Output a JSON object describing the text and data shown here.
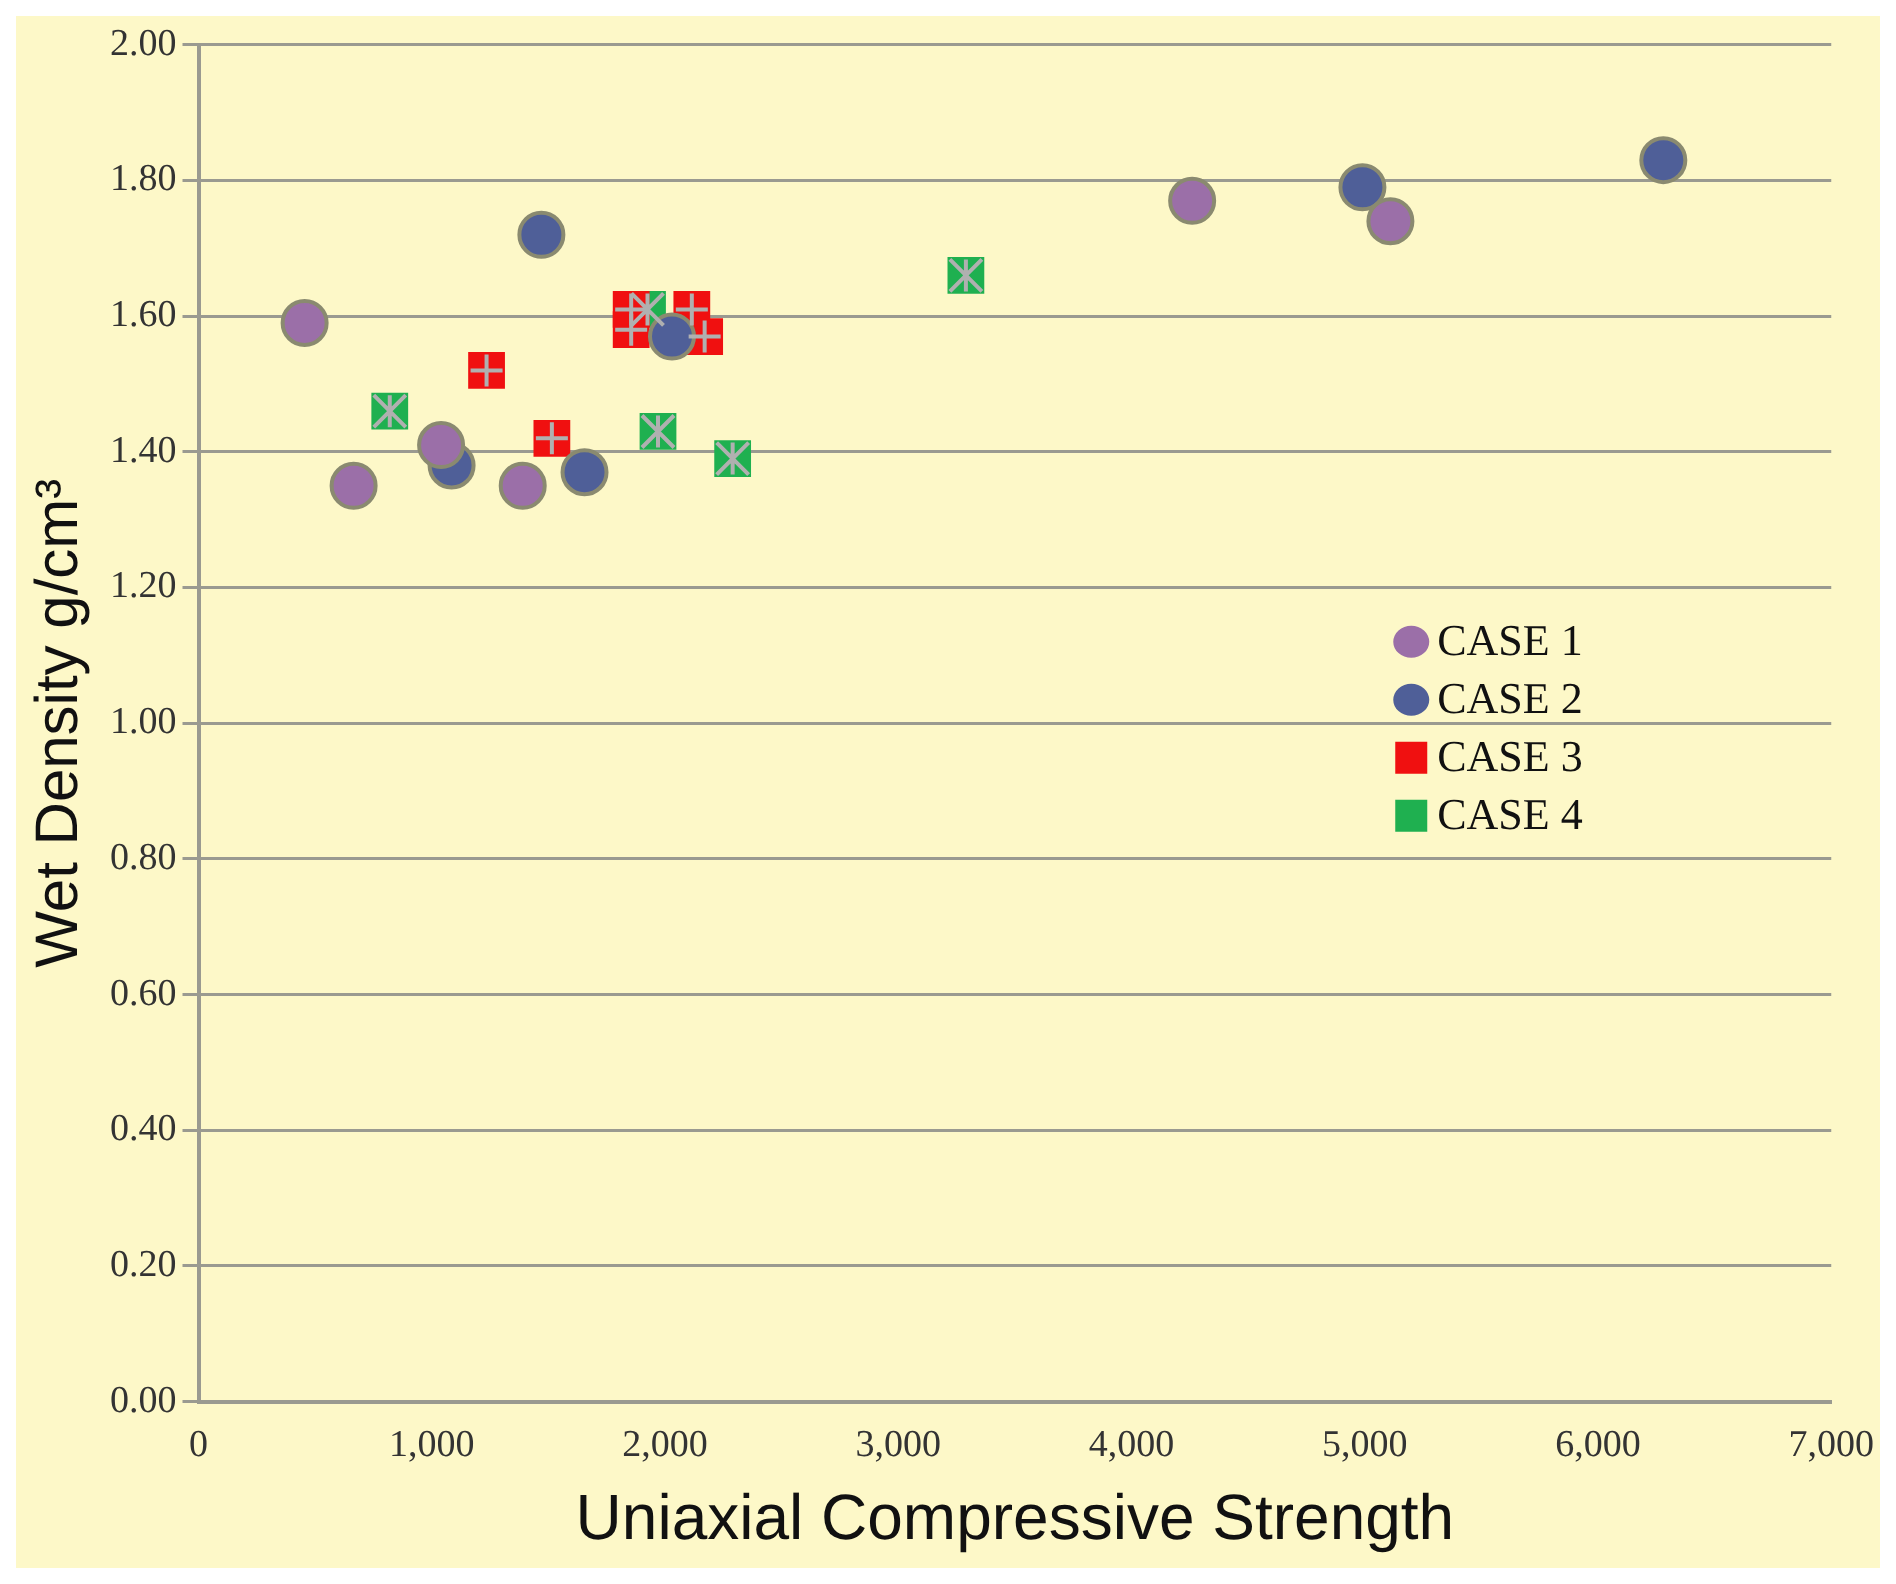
{
  "chart_data": {
    "type": "scatter",
    "xlabel": "Uniaxial Compressive Strength",
    "ylabel": "Wet Density g/cm³",
    "xlim": [
      0,
      7000
    ],
    "ylim": [
      0,
      2
    ],
    "xticks": [
      {
        "value": 0,
        "label": "0"
      },
      {
        "value": 1000,
        "label": "1,000"
      },
      {
        "value": 2000,
        "label": "2,000"
      },
      {
        "value": 3000,
        "label": "3,000"
      },
      {
        "value": 4000,
        "label": "4,000"
      },
      {
        "value": 5000,
        "label": "5,000"
      },
      {
        "value": 6000,
        "label": "6,000"
      },
      {
        "value": 7000,
        "label": "7,000"
      }
    ],
    "yticks": [
      {
        "value": 0,
        "label": "0.00"
      },
      {
        "value": 0.2,
        "label": "0.20"
      },
      {
        "value": 0.4,
        "label": "0.40"
      },
      {
        "value": 0.6,
        "label": "0.60"
      },
      {
        "value": 0.8,
        "label": "0.80"
      },
      {
        "value": 1,
        "label": "1.00"
      },
      {
        "value": 1.2,
        "label": "1.20"
      },
      {
        "value": 1.4,
        "label": "1.40"
      },
      {
        "value": 1.6,
        "label": "1.60"
      },
      {
        "value": 1.8,
        "label": "1.80"
      },
      {
        "value": 2,
        "label": "2.00"
      }
    ],
    "grid": "y",
    "legend": "right",
    "series": [
      {
        "name": "CASE 1",
        "color": "#9b6fa8",
        "marker": "circle",
        "x": [
          455,
          665,
          1040,
          1390,
          4260,
          5110
        ],
        "values": [
          1.59,
          1.35,
          1.41,
          1.35,
          1.77,
          1.74
        ]
      },
      {
        "name": "CASE 2",
        "color": "#4f5f98",
        "marker": "circle",
        "x": [
          1470,
          1085,
          1655,
          2030,
          4990,
          6280
        ],
        "values": [
          1.72,
          1.38,
          1.37,
          1.57,
          1.79,
          1.83
        ]
      },
      {
        "name": "CASE 3",
        "color": "#f01010",
        "marker": "square",
        "x": [
          1235,
          1515,
          1855,
          1855,
          2115,
          2170
        ],
        "values": [
          1.52,
          1.42,
          1.58,
          1.61,
          1.61,
          1.57
        ]
      },
      {
        "name": "CASE 4",
        "color": "#1fb050",
        "marker": "square",
        "x": [
          820,
          1925,
          1970,
          2290,
          3290
        ],
        "values": [
          1.46,
          1.61,
          1.43,
          1.39,
          1.66
        ]
      }
    ]
  }
}
